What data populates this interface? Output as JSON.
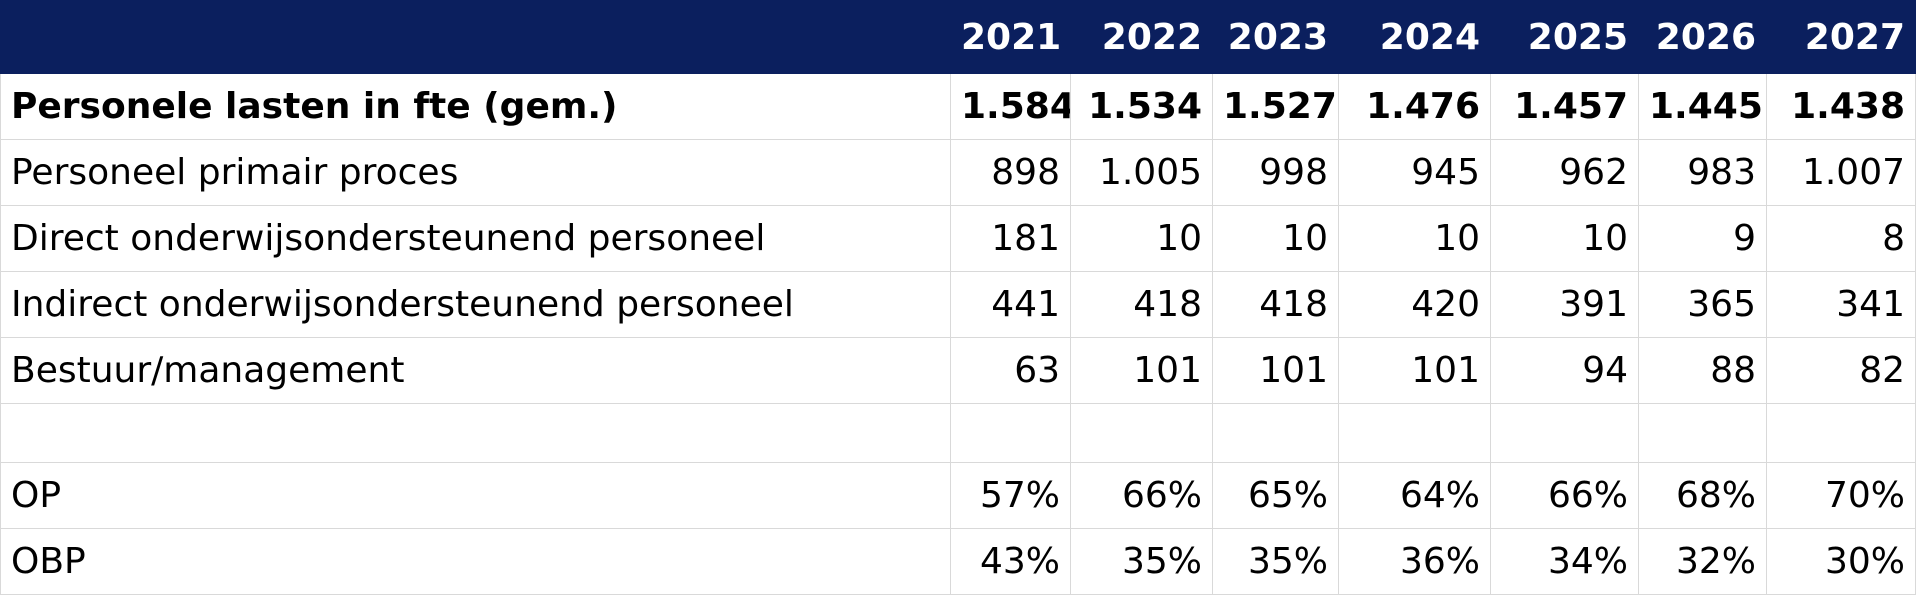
{
  "table": {
    "years": [
      "2021",
      "2022",
      "2023",
      "2024",
      "2025",
      "2026",
      "2027"
    ],
    "rows": [
      {
        "label": "Personele lasten in fte (gem.)",
        "values": [
          "1.584",
          "1.534",
          "1.527",
          "1.476",
          "1.457",
          "1.445",
          "1.438"
        ],
        "bold": true
      },
      {
        "label": "Personeel primair proces",
        "values": [
          "898",
          "1.005",
          "998",
          "945",
          "962",
          "983",
          "1.007"
        ]
      },
      {
        "label": "Direct onderwijsondersteunend personeel",
        "values": [
          "181",
          "10",
          "10",
          "10",
          "10",
          "9",
          "8"
        ]
      },
      {
        "label": "Indirect onderwijsondersteunend personeel",
        "values": [
          "441",
          "418",
          "418",
          "420",
          "391",
          "365",
          "341"
        ]
      },
      {
        "label": "Bestuur/management",
        "values": [
          "63",
          "101",
          "101",
          "101",
          "94",
          "88",
          "82"
        ]
      },
      {
        "label": "",
        "values": [
          "",
          "",
          "",
          "",
          "",
          "",
          ""
        ]
      },
      {
        "label": "OP",
        "values": [
          "57%",
          "66%",
          "65%",
          "64%",
          "66%",
          "68%",
          "70%"
        ]
      },
      {
        "label": "OBP",
        "values": [
          "43%",
          "35%",
          "35%",
          "36%",
          "34%",
          "32%",
          "30%"
        ]
      }
    ]
  },
  "colors": {
    "header_bg": "#0b1f5e",
    "header_text": "#ffffff",
    "grid": "#d9d9d9"
  }
}
